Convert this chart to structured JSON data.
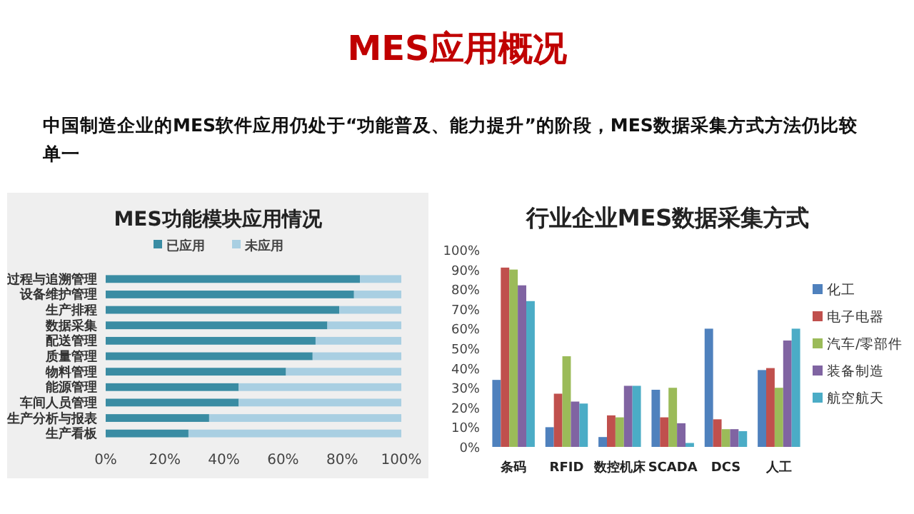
{
  "chart_data": [
    {
      "type": "bar",
      "orientation": "horizontal",
      "stacked": true,
      "title": "MES功能模块应用情况",
      "annotations": [
        "MES应用概况",
        "中国制造企业的MES软件应用仍处于“功能普及、能力提升”的阶段，MES数据采集方式方法仍比较单一"
      ],
      "categories": [
        "过程与追溯管理",
        "设备维护管理",
        "生产排程",
        "数据采集",
        "配送管理",
        "质量管理",
        "物料管理",
        "能源管理",
        "车间人员管理",
        "生产分析与报表",
        "生产看板"
      ],
      "series": [
        {
          "name": "已应用",
          "color": "#3a8ca3",
          "values": [
            86,
            84,
            79,
            75,
            71,
            70,
            61,
            45,
            45,
            35,
            28
          ]
        },
        {
          "name": "未应用",
          "color": "#a9cfe2",
          "values": [
            14,
            16,
            21,
            25,
            29,
            30,
            39,
            55,
            55,
            65,
            72
          ]
        }
      ],
      "xlim": [
        0,
        100
      ],
      "xticks": [
        {
          "value": 0,
          "label": "0%"
        },
        {
          "value": 20,
          "label": "20%"
        },
        {
          "value": 40,
          "label": "40%"
        },
        {
          "value": 60,
          "label": "60%"
        },
        {
          "value": 80,
          "label": "80%"
        },
        {
          "value": 100,
          "label": "100%"
        }
      ],
      "legend": "top"
    },
    {
      "type": "bar",
      "title": "行业企业MES数据采集方式",
      "categories": [
        "条码",
        "RFID",
        "数控机床",
        "SCADA",
        "DCS",
        "人工"
      ],
      "series": [
        {
          "name": "化工",
          "color": "#4f81bd",
          "values": [
            34,
            10,
            5,
            29,
            60,
            39
          ]
        },
        {
          "name": "电子电器",
          "color": "#c0504d",
          "values": [
            91,
            27,
            16,
            15,
            14,
            40
          ]
        },
        {
          "name": "汽车/零部件",
          "color": "#9bbb59",
          "values": [
            90,
            46,
            15,
            30,
            9,
            30
          ]
        },
        {
          "name": "装备制造",
          "color": "#8064a2",
          "values": [
            82,
            23,
            31,
            12,
            9,
            54
          ]
        },
        {
          "name": "航空航天",
          "color": "#4bacc6",
          "values": [
            74,
            22,
            31,
            2,
            8,
            60
          ]
        }
      ],
      "ylim": [
        0,
        100
      ],
      "yticks": [
        {
          "value": 0,
          "label": "0%"
        },
        {
          "value": 10,
          "label": "10%"
        },
        {
          "value": 20,
          "label": "20%"
        },
        {
          "value": 30,
          "label": "30%"
        },
        {
          "value": 40,
          "label": "40%"
        },
        {
          "value": 50,
          "label": "50%"
        },
        {
          "value": 60,
          "label": "60%"
        },
        {
          "value": 70,
          "label": "70%"
        },
        {
          "value": 80,
          "label": "80%"
        },
        {
          "value": 90,
          "label": "90%"
        },
        {
          "value": 100,
          "label": "100%"
        }
      ],
      "legend": "right"
    }
  ]
}
